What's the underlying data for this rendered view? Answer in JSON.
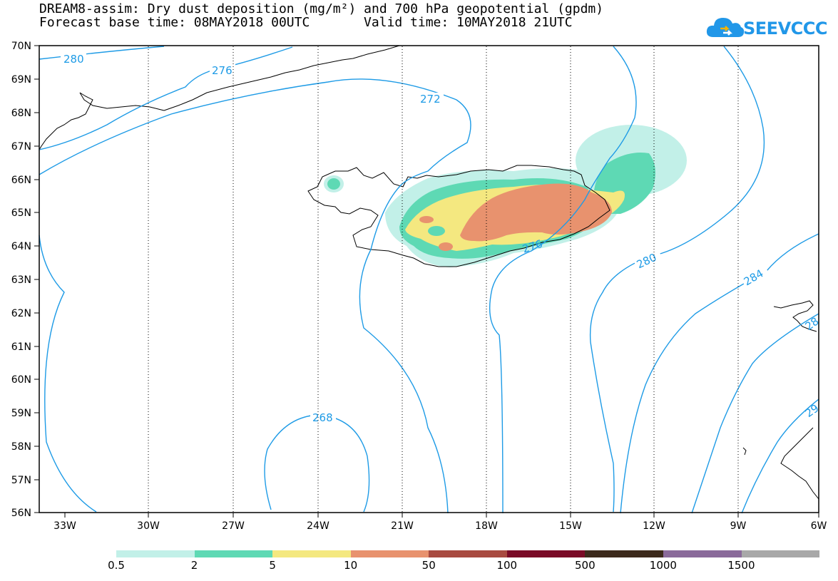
{
  "header": {
    "title_line1": "DREAM8-assim: Dry dust deposition (mg/m²) and 700 hPa geopotential (gpdm)",
    "forecast_base": "Forecast base time: 08MAY2018 00UTC",
    "valid_time": "Valid time: 10MAY2018 21UTC"
  },
  "logo": {
    "text": "SEEVCCC",
    "icon": "cloud-icon",
    "color": "#2197e8"
  },
  "axes": {
    "lat_labels": [
      "70N",
      "69N",
      "68N",
      "67N",
      "66N",
      "65N",
      "64N",
      "63N",
      "62N",
      "61N",
      "60N",
      "59N",
      "58N",
      "57N",
      "56N"
    ],
    "lon_labels": [
      "33W",
      "30W",
      "27W",
      "24W",
      "21W",
      "18W",
      "15W",
      "12W",
      "9W",
      "6W"
    ]
  },
  "contours": {
    "color": "#1e9be6",
    "labels": [
      "280",
      "276",
      "272",
      "268",
      "276",
      "280",
      "284",
      "28",
      "29"
    ]
  },
  "legend": {
    "labels": [
      "0.5",
      "2",
      "5",
      "10",
      "50",
      "100",
      "500",
      "1000",
      "1500"
    ],
    "colors": [
      "#c2f0e8",
      "#5ed9b4",
      "#f4e880",
      "#e8926e",
      "#a84a40",
      "#7a0a26",
      "#3c2a1c",
      "#8a6a9a",
      "#a8a8a8"
    ]
  }
}
